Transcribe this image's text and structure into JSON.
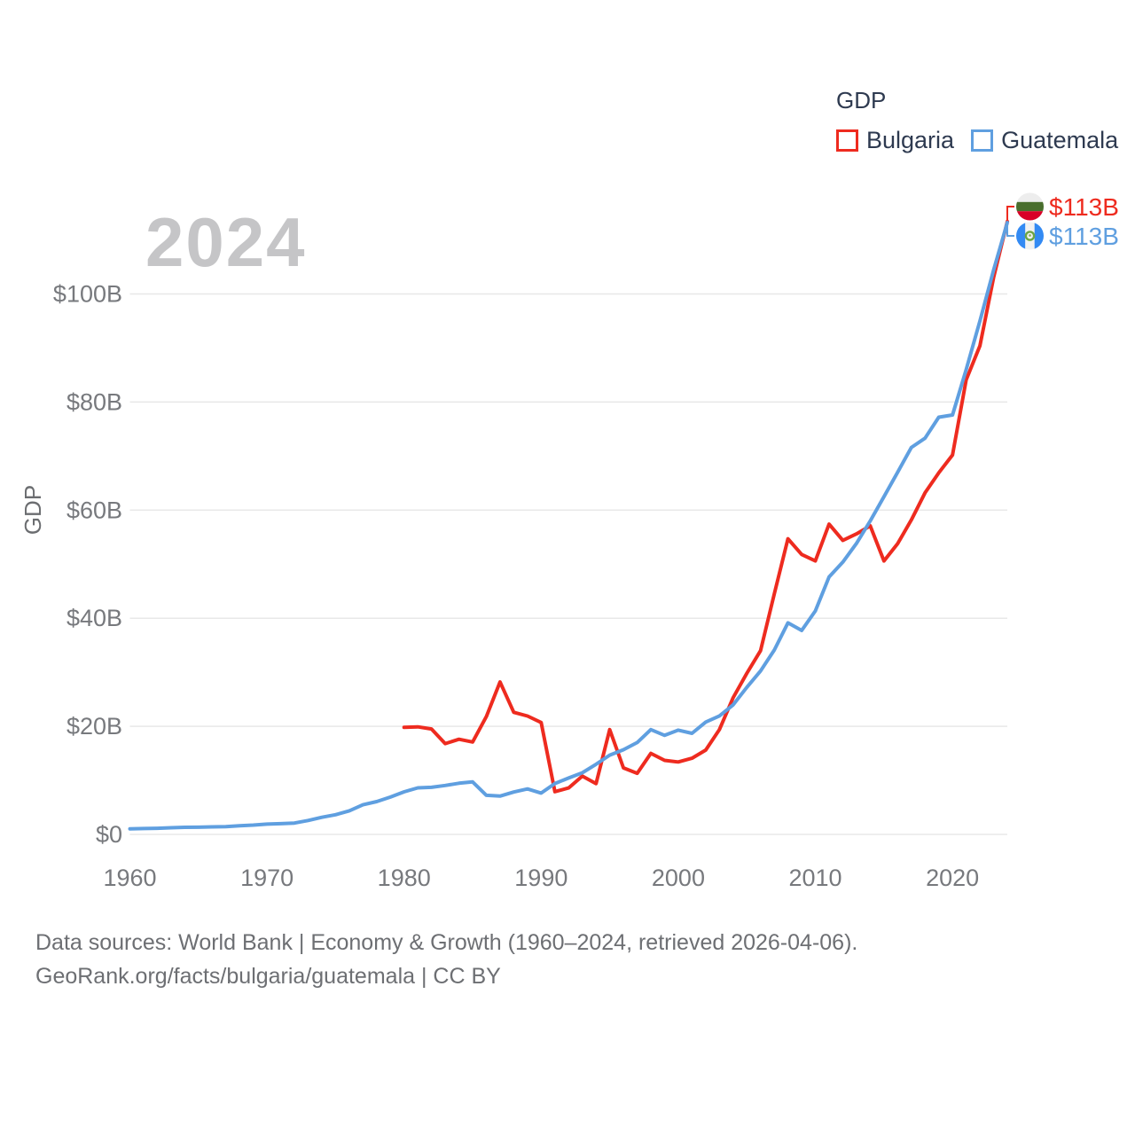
{
  "watermark": "2024",
  "legend": {
    "title": "GDP",
    "items": [
      {
        "label": "Bulgaria",
        "color": "#ee2b1f"
      },
      {
        "label": "Guatemala",
        "color": "#5f9fe0"
      }
    ]
  },
  "end_labels": [
    {
      "series": "Bulgaria",
      "label": "$113B",
      "color": "#ee2b1f",
      "flag": "bulgaria-flag"
    },
    {
      "series": "Guatemala",
      "label": "$113B",
      "color": "#5f9fe0",
      "flag": "guatemala-flag"
    }
  ],
  "footer": {
    "line1": "Data sources: World Bank | Economy & Growth (1960–2024, retrieved 2026-04-06).",
    "line2": "GeoRank.org/facts/bulgaria/guatemala | CC BY"
  },
  "chart_data": {
    "type": "line",
    "title": "GDP",
    "ylabel": "GDP",
    "xlim": [
      1960,
      2024
    ],
    "ylim": [
      0,
      120
    ],
    "grid": "horizontal",
    "legend_position": "top-right",
    "yticks": [
      {
        "value": 0,
        "label": "$0"
      },
      {
        "value": 20,
        "label": "$20B"
      },
      {
        "value": 40,
        "label": "$40B"
      },
      {
        "value": 60,
        "label": "$60B"
      },
      {
        "value": 80,
        "label": "$80B"
      },
      {
        "value": 100,
        "label": "$100B"
      }
    ],
    "xticks": [
      {
        "value": 1960,
        "label": "1960"
      },
      {
        "value": 1970,
        "label": "1970"
      },
      {
        "value": 1980,
        "label": "1980"
      },
      {
        "value": 1990,
        "label": "1990"
      },
      {
        "value": 2000,
        "label": "2000"
      },
      {
        "value": 2010,
        "label": "2010"
      },
      {
        "value": 2020,
        "label": "2020"
      }
    ],
    "series": [
      {
        "name": "Bulgaria",
        "color": "#ee2b1f",
        "start_year": 1980,
        "values": [
          19.8,
          19.9,
          19.5,
          16.8,
          17.6,
          17.1,
          21.8,
          28.2,
          22.6,
          21.9,
          20.7,
          7.9,
          8.6,
          10.8,
          9.4,
          19.4,
          12.3,
          11.3,
          15.0,
          13.7,
          13.4,
          14.1,
          15.6,
          19.4,
          25.3,
          29.8,
          34.0,
          44.5,
          54.7,
          51.8,
          50.6,
          57.4,
          54.4,
          55.6,
          57.1,
          50.6,
          53.8,
          58.2,
          63.2,
          66.9,
          70.2,
          84.1,
          90.4,
          103.0,
          113.4
        ]
      },
      {
        "name": "Guatemala",
        "color": "#5f9fe0",
        "start_year": 1960,
        "values": [
          1.04,
          1.08,
          1.14,
          1.23,
          1.31,
          1.33,
          1.4,
          1.45,
          1.6,
          1.72,
          1.9,
          1.98,
          2.1,
          2.57,
          3.16,
          3.65,
          4.37,
          5.48,
          6.07,
          6.9,
          7.88,
          8.61,
          8.72,
          9.05,
          9.47,
          9.72,
          7.23,
          7.08,
          7.84,
          8.41,
          7.65,
          9.41,
          10.44,
          11.4,
          12.98,
          14.66,
          15.67,
          17.0,
          19.4,
          18.32,
          19.29,
          18.7,
          20.78,
          21.92,
          23.97,
          27.21,
          30.23,
          34.11,
          39.14,
          37.73,
          41.34,
          47.65,
          50.39,
          53.85,
          58.0,
          62.5,
          67.0,
          71.6,
          73.3,
          77.2,
          77.6,
          86.0,
          95.0,
          104.4,
          113.2
        ]
      }
    ]
  }
}
